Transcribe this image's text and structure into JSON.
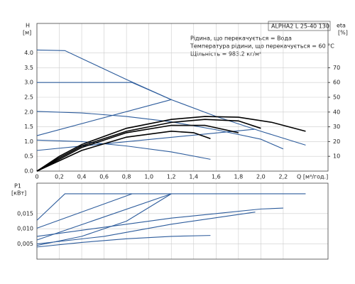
{
  "chart_data": [
    {
      "type": "line",
      "title": "ALPHA2 L 25-40 130",
      "notes": [
        "Рідина, що перекачується = Вода",
        "Температура рідини, що перекачується = 60 °C",
        "Щільність = 983.2 кг/м³"
      ],
      "ylabel": "H",
      "ylabel_unit": "[м]",
      "y2label": "eta",
      "y2label_unit": "[%]",
      "xlabel": "Q [м³/год.]",
      "xlim": [
        0,
        2.6
      ],
      "ylim": [
        0,
        5.0
      ],
      "y2lim": [
        0,
        100
      ],
      "grid": true,
      "xticks": [
        0,
        {
          "value": 0.2,
          "label": "0,2"
        },
        {
          "value": 0.4,
          "label": "0,4"
        },
        {
          "value": 0.6,
          "label": "0,6"
        },
        {
          "value": 0.8,
          "label": "0,8"
        },
        {
          "value": 1.0,
          "label": "1,0"
        },
        {
          "value": 1.2,
          "label": "1,2"
        },
        {
          "value": 1.4,
          "label": "1,4"
        },
        {
          "value": 1.6,
          "label": "1,6"
        },
        {
          "value": 1.8,
          "label": "1,8"
        },
        {
          "value": 2.0,
          "label": "2,0"
        },
        {
          "value": 2.2,
          "label": "2,2"
        }
      ],
      "yticks": [
        {
          "value": 0,
          "label": "0.0"
        },
        0.5,
        {
          "value": 1,
          "label": "1.0"
        },
        1.5,
        {
          "value": 2,
          "label": "2.0"
        },
        2.5,
        {
          "value": 3,
          "label": "3.0"
        },
        3.5,
        {
          "value": 4,
          "label": "4.0"
        }
      ],
      "y2ticks": [
        10,
        20,
        30,
        40,
        50,
        60,
        70
      ],
      "series": [
        {
          "color": "#2d5c9c",
          "x": [
            0,
            0.25,
            0.8,
            1.2,
            1.6,
            2.0,
            2.4
          ],
          "values": [
            4.1,
            4.08,
            3.1,
            2.42,
            1.85,
            1.35,
            0.88
          ]
        },
        {
          "color": "#2d5c9c",
          "x": [
            0,
            0.85,
            1.2
          ],
          "values": [
            3.0,
            3.0,
            2.42
          ]
        },
        {
          "color": "#2d5c9c",
          "x": [
            0,
            1.2
          ],
          "values": [
            1.2,
            2.42
          ]
        },
        {
          "color": "#2d5c9c",
          "x": [
            0,
            0.4,
            0.8,
            1.2,
            1.6,
            2.0,
            2.2
          ],
          "values": [
            2.02,
            1.97,
            1.85,
            1.67,
            1.4,
            1.08,
            0.75
          ]
        },
        {
          "color": "#2d5c9c",
          "x": [
            0,
            1.95
          ],
          "values": [
            0.7,
            1.42
          ]
        },
        {
          "color": "#2d5c9c",
          "x": [
            0,
            0.4,
            0.8,
            1.2,
            1.55
          ],
          "values": [
            1.05,
            1.0,
            0.85,
            0.65,
            0.4
          ]
        },
        {
          "color": "#000000",
          "axis": "y2",
          "x": [
            0,
            0.2,
            0.4,
            0.8,
            1.2,
            1.5,
            1.8,
            2.1,
            2.4
          ],
          "values": [
            0,
            10,
            18,
            29,
            35,
            37,
            36.5,
            33,
            27
          ]
        },
        {
          "color": "#000000",
          "axis": "y2",
          "x": [
            0,
            0.2,
            0.4,
            0.8,
            1.2,
            1.5,
            1.8,
            2.0
          ],
          "values": [
            0,
            9,
            17,
            27,
            33,
            35,
            34,
            29
          ]
        },
        {
          "color": "#000000",
          "axis": "y2",
          "x": [
            0,
            0.4,
            0.8,
            1.2,
            1.5,
            1.8
          ],
          "values": [
            0,
            16,
            26,
            31,
            31,
            26
          ]
        },
        {
          "color": "#000000",
          "axis": "y2",
          "x": [
            0,
            0.4,
            0.8,
            1.2,
            1.4,
            1.55
          ],
          "values": [
            0,
            14,
            23,
            27,
            26,
            22
          ]
        }
      ]
    },
    {
      "type": "line",
      "ylabel": "P1",
      "ylabel_unit": "[кВт]",
      "xlim": [
        0,
        2.6
      ],
      "ylim": [
        0,
        0.025
      ],
      "grid": true,
      "yticks": [
        {
          "value": 0.005,
          "label": "0,005"
        },
        {
          "value": 0.01,
          "label": "0,010"
        },
        {
          "value": 0.015,
          "label": "0,015"
        }
      ],
      "series": [
        {
          "color": "#2d5c9c",
          "x": [
            0,
            0.25,
            2.4
          ],
          "values": [
            0.0128,
            0.0215,
            0.0215
          ]
        },
        {
          "color": "#2d5c9c",
          "x": [
            0,
            0.85
          ],
          "values": [
            0.0102,
            0.0215
          ]
        },
        {
          "color": "#2d5c9c",
          "x": [
            0,
            1.2
          ],
          "values": [
            0.0063,
            0.0215
          ]
        },
        {
          "color": "#2d5c9c",
          "x": [
            0,
            0.4,
            0.8,
            1.2
          ],
          "values": [
            0.0045,
            0.0075,
            0.0125,
            0.0215
          ]
        },
        {
          "color": "#2d5c9c",
          "x": [
            0,
            0.4,
            0.8,
            1.2,
            1.6,
            2.0,
            2.2
          ],
          "values": [
            0.0075,
            0.0095,
            0.0115,
            0.0135,
            0.015,
            0.0165,
            0.0168
          ]
        },
        {
          "color": "#2d5c9c",
          "x": [
            0,
            0.6,
            1.2,
            1.95
          ],
          "values": [
            0.005,
            0.0075,
            0.0115,
            0.0155
          ]
        },
        {
          "color": "#2d5c9c",
          "x": [
            0,
            0.4,
            0.8,
            1.2,
            1.55
          ],
          "values": [
            0.004,
            0.0055,
            0.0067,
            0.0075,
            0.0078
          ]
        }
      ]
    }
  ]
}
